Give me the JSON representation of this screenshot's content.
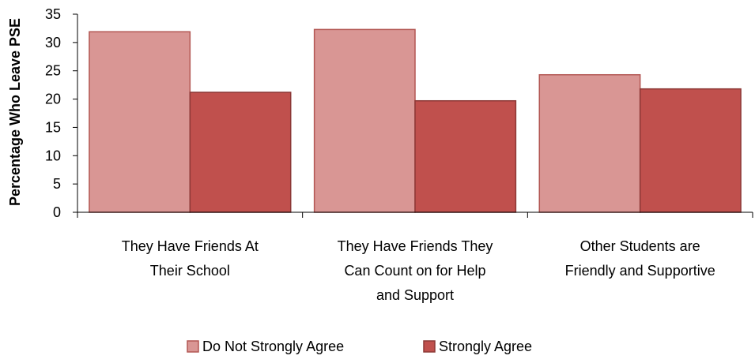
{
  "chart_data": {
    "type": "bar",
    "ylabel": "Percentage Who Leave PSE",
    "ylim": [
      0,
      35
    ],
    "yticks": [
      0,
      5,
      10,
      15,
      20,
      25,
      30,
      35
    ],
    "grid": false,
    "legend_position": "bottom",
    "categories": [
      [
        "They Have Friends At",
        "Their School"
      ],
      [
        "They Have Friends They",
        "Can Count on for Help",
        "and Support"
      ],
      [
        "Other Students are",
        "Friendly and Supportive"
      ]
    ],
    "series": [
      {
        "name": "Do Not Strongly Agree",
        "values": [
          31.9,
          32.3,
          24.3
        ]
      },
      {
        "name": "Strongly Agree",
        "values": [
          21.2,
          19.7,
          21.8
        ]
      }
    ]
  },
  "colors": {
    "series": [
      "#d99694",
      "#c0504d"
    ],
    "borders": [
      "#b35753",
      "#8c3836"
    ],
    "axis": "#000000"
  }
}
